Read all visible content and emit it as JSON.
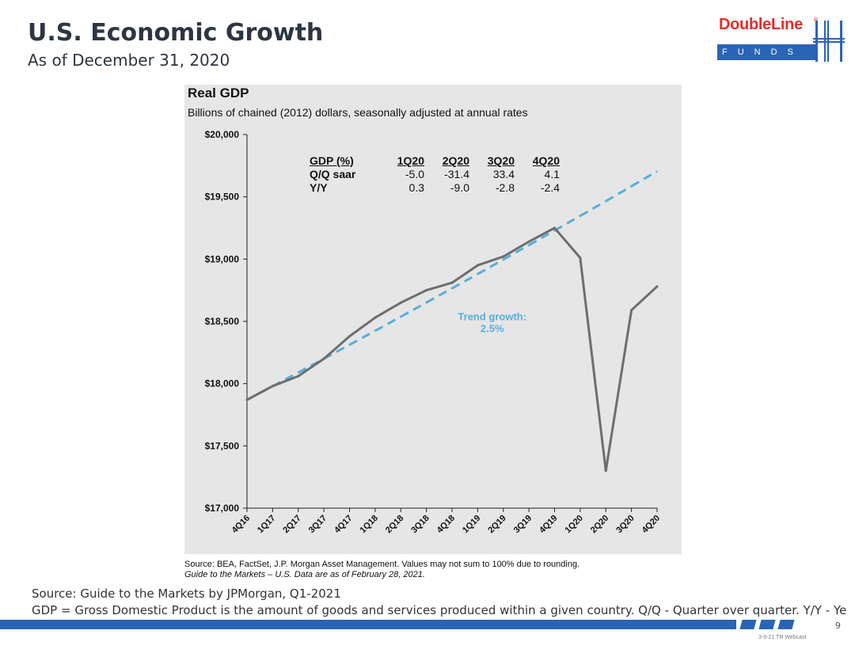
{
  "slide": {
    "title": "U.S. Economic Growth",
    "subtitle": "As of December 31, 2020",
    "logo_name": "DoubleLine",
    "logo_registered": "®",
    "logo_funds": "FUNDS",
    "page_number": "9",
    "event_note": "3-9-21 TR Webcast",
    "footer_source": "Source: Guide to the Markets by JPMorgan, Q1-2021",
    "footer_definition": "GDP = Gross Domestic Product is the amount of goods and services produced within a given country. Q/Q - Quarter over quarter. Y/Y - Ye",
    "colors": {
      "brand_red": "#e22f2a",
      "brand_blue": "#2a64b5"
    }
  },
  "chart_data": {
    "type": "line",
    "title": "Real GDP",
    "subtitle": "Billions of chained (2012) dollars, seasonally adjusted at annual rates",
    "categories": [
      "4Q16",
      "1Q17",
      "2Q17",
      "3Q17",
      "4Q17",
      "1Q18",
      "2Q18",
      "3Q18",
      "4Q18",
      "1Q19",
      "2Q19",
      "3Q19",
      "4Q19",
      "1Q20",
      "2Q20",
      "3Q20",
      "4Q20"
    ],
    "series": [
      {
        "name": "Real GDP",
        "color": "#6e6e6e",
        "values": [
          17870,
          17980,
          18060,
          18200,
          18380,
          18530,
          18650,
          18750,
          18810,
          18950,
          19020,
          19140,
          19250,
          19010,
          17300,
          18590,
          18780
        ]
      },
      {
        "name": "Trend growth",
        "color": "#5aaed9",
        "style": "dashed",
        "values": [
          17870,
          17979,
          18089,
          18200,
          18312,
          18424,
          18537,
          18651,
          18765,
          18880,
          18996,
          19112,
          19229,
          19347,
          19465,
          19585,
          19705
        ]
      }
    ],
    "ylim": [
      17000,
      20000
    ],
    "yticks": [
      17000,
      17500,
      18000,
      18500,
      19000,
      19500,
      20000
    ],
    "ytick_labels": [
      "$17,000",
      "$17,500",
      "$18,000",
      "$18,500",
      "$19,000",
      "$19,500",
      "$20,000"
    ],
    "annotation": {
      "line1": "Trend growth:",
      "line2": "2.5%",
      "x_category": "2Q19",
      "y_value": 18510
    },
    "table": {
      "header": [
        "GDP (%)",
        "1Q20",
        "2Q20",
        "3Q20",
        "4Q20"
      ],
      "rows": [
        {
          "label": "Q/Q saar",
          "values": [
            "-5.0",
            "-31.4",
            "33.4",
            "4.1"
          ]
        },
        {
          "label": "Y/Y",
          "values": [
            "0.3",
            "-9.0",
            "-2.8",
            "-2.4"
          ]
        }
      ]
    },
    "source": "Source: BEA, FactSet, J.P. Morgan Asset Management. Values may not sum to 100% due to rounding.",
    "source_note": "Guide to the Markets – U.S. Data are as of February 28, 2021."
  }
}
